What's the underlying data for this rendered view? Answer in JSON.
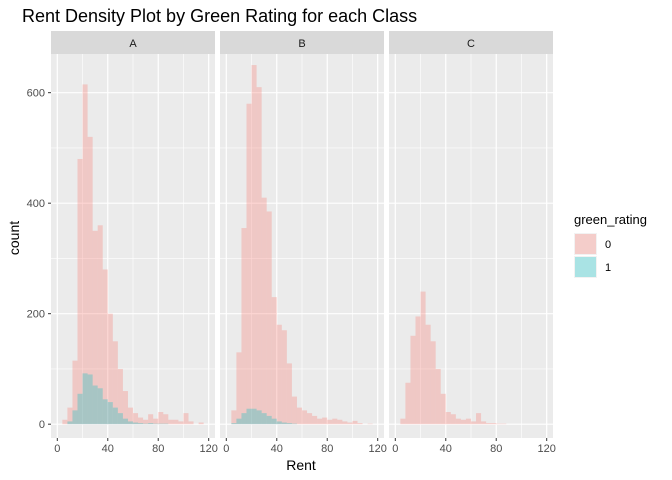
{
  "chart_data": {
    "type": "bar",
    "subtype": "faceted stacked histogram",
    "title": "Rent Density Plot by Green Rating for each Class",
    "xlabel": "Rent",
    "ylabel": "count",
    "xlim": [
      -5,
      125
    ],
    "ylim": [
      -25,
      670
    ],
    "x_ticks": [
      0,
      40,
      80,
      120
    ],
    "y_ticks": [
      0,
      200,
      400,
      600
    ],
    "grid": true,
    "bin_width": 4,
    "bin_starts": [
      4,
      8,
      12,
      16,
      20,
      24,
      28,
      32,
      36,
      40,
      44,
      48,
      52,
      56,
      60,
      64,
      68,
      72,
      76,
      80,
      84,
      88,
      92,
      96,
      100,
      104,
      108,
      112,
      116
    ],
    "legend": {
      "title": "green_rating",
      "position": "right",
      "entries": [
        {
          "label": "0",
          "color": "#F8766D"
        },
        {
          "label": "1",
          "color": "#00BFC4"
        }
      ]
    },
    "fill_alpha": 0.3,
    "facets": [
      {
        "label": "A",
        "series": [
          {
            "name": "0",
            "values": [
              8,
              30,
              115,
              480,
              615,
              520,
              350,
              360,
              280,
              200,
              150,
              100,
              60,
              30,
              20,
              12,
              8,
              18,
              10,
              22,
              18,
              8,
              8,
              5,
              20,
              5,
              0,
              3,
              0
            ]
          },
          {
            "name": "1",
            "values": [
              0,
              5,
              25,
              55,
              92,
              90,
              70,
              65,
              45,
              40,
              30,
              20,
              10,
              5,
              3,
              2,
              1,
              2,
              1,
              1,
              1,
              0,
              0,
              0,
              0,
              0,
              0,
              0,
              0
            ]
          }
        ]
      },
      {
        "label": "B",
        "series": [
          {
            "name": "0",
            "values": [
              25,
              130,
              355,
              580,
              650,
              610,
              410,
              385,
              230,
              180,
              170,
              110,
              50,
              30,
              25,
              20,
              15,
              10,
              12,
              8,
              10,
              8,
              5,
              3,
              6,
              2,
              0,
              1,
              0
            ]
          },
          {
            "name": "1",
            "values": [
              2,
              10,
              20,
              28,
              28,
              25,
              20,
              15,
              10,
              5,
              3,
              2,
              1,
              0,
              0,
              0,
              0,
              0,
              0,
              0,
              0,
              0,
              0,
              0,
              0,
              0,
              0,
              0,
              0
            ]
          }
        ]
      },
      {
        "label": "C",
        "series": [
          {
            "name": "0",
            "values": [
              10,
              75,
              160,
              195,
              240,
              180,
              150,
              100,
              55,
              22,
              18,
              10,
              8,
              10,
              5,
              20,
              5,
              2,
              2,
              1,
              1,
              0,
              0,
              0,
              0,
              0,
              0,
              0,
              0
            ]
          },
          {
            "name": "1",
            "values": [
              0,
              0,
              0,
              0,
              0,
              0,
              0,
              0,
              0,
              0,
              0,
              0,
              0,
              0,
              0,
              0,
              0,
              0,
              0,
              0,
              0,
              0,
              0,
              0,
              0,
              0,
              0,
              0,
              0
            ]
          }
        ]
      }
    ]
  }
}
